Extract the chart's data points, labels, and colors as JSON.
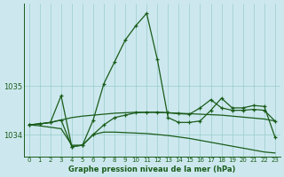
{
  "background_color": "#cce8ee",
  "grid_color": "#99cccc",
  "line_color": "#1a5c1a",
  "x_ticks": [
    0,
    1,
    2,
    3,
    4,
    5,
    6,
    7,
    8,
    9,
    10,
    11,
    12,
    13,
    14,
    15,
    16,
    17,
    18,
    19,
    20,
    21,
    22,
    23
  ],
  "y_ticks": [
    1034,
    1035
  ],
  "ylim": [
    1033.55,
    1036.7
  ],
  "xlim": [
    -0.5,
    23.5
  ],
  "xlabel": "Graphe pression niveau de la mer (hPa)",
  "series": {
    "line_peaked": [
      1034.2,
      1034.22,
      1034.25,
      1034.8,
      1033.75,
      1033.78,
      1034.3,
      1035.05,
      1035.5,
      1035.95,
      1036.25,
      1036.5,
      1035.55,
      1034.35,
      1034.25,
      1034.25,
      1034.28,
      1034.5,
      1034.75,
      1034.55,
      1034.55,
      1034.6,
      1034.58,
      1033.95
    ],
    "line_flat": [
      1034.2,
      1034.22,
      1034.25,
      1034.3,
      1034.35,
      1034.38,
      1034.4,
      1034.42,
      1034.44,
      1034.45,
      1034.46,
      1034.46,
      1034.46,
      1034.45,
      1034.44,
      1034.43,
      1034.42,
      1034.41,
      1034.4,
      1034.38,
      1034.36,
      1034.34,
      1034.32,
      1034.28
    ],
    "line_slope": [
      1034.2,
      1034.18,
      1034.15,
      1034.12,
      1033.78,
      1033.78,
      1034.0,
      1034.05,
      1034.05,
      1034.04,
      1034.03,
      1034.02,
      1034.0,
      1033.98,
      1033.95,
      1033.92,
      1033.88,
      1033.84,
      1033.8,
      1033.76,
      1033.72,
      1033.68,
      1033.64,
      1033.62
    ],
    "line_mid": [
      1034.2,
      1034.22,
      1034.25,
      1034.3,
      1033.75,
      1033.78,
      1034.0,
      1034.2,
      1034.35,
      1034.4,
      1034.45,
      1034.46,
      1034.46,
      1034.45,
      1034.43,
      1034.42,
      1034.55,
      1034.72,
      1034.55,
      1034.5,
      1034.5,
      1034.52,
      1034.5,
      1034.28
    ]
  }
}
